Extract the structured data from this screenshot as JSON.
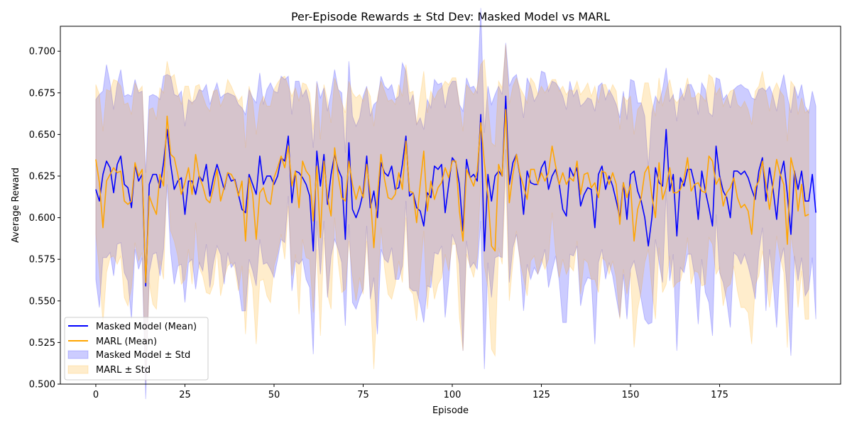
{
  "chart_data": {
    "type": "line",
    "title": "Per-Episode Rewards ± Std Dev: Masked Model vs MARL",
    "xlabel": "Episode",
    "ylabel": "Average Reward",
    "xlim": [
      -9.95,
      208.95
    ],
    "ylim": [
      0.5,
      0.715
    ],
    "xticks": [
      0,
      25,
      50,
      75,
      100,
      125,
      150,
      175
    ],
    "yticks": [
      0.5,
      0.525,
      0.55,
      0.575,
      0.6,
      0.625,
      0.65,
      0.675,
      0.7
    ],
    "ytick_labels": [
      "0.500",
      "0.525",
      "0.550",
      "0.575",
      "0.600",
      "0.625",
      "0.650",
      "0.675",
      "0.700"
    ],
    "legend_position": "lower-left",
    "grid": false,
    "series": [
      {
        "name": "Masked Model (Mean)",
        "std_name": "Masked Model ± Std",
        "color": "#0000ff",
        "band_color": "#0000ff",
        "band_opacity": 0.2,
        "x_start": 0,
        "mean": [
          0.617,
          0.61,
          0.626,
          0.634,
          0.63,
          0.615,
          0.632,
          0.637,
          0.62,
          0.618,
          0.606,
          0.632,
          0.622,
          0.626,
          0.559,
          0.62,
          0.626,
          0.626,
          0.618,
          0.633,
          0.653,
          0.632,
          0.617,
          0.622,
          0.624,
          0.602,
          0.622,
          0.622,
          0.614,
          0.625,
          0.622,
          0.632,
          0.613,
          0.624,
          0.632,
          0.625,
          0.617,
          0.627,
          0.622,
          0.623,
          0.614,
          0.605,
          0.603,
          0.626,
          0.62,
          0.614,
          0.637,
          0.62,
          0.625,
          0.625,
          0.62,
          0.625,
          0.636,
          0.634,
          0.649,
          0.609,
          0.628,
          0.627,
          0.624,
          0.62,
          0.613,
          0.58,
          0.64,
          0.619,
          0.638,
          0.608,
          0.626,
          0.638,
          0.629,
          0.624,
          0.587,
          0.645,
          0.605,
          0.6,
          0.606,
          0.615,
          0.637,
          0.606,
          0.616,
          0.6,
          0.633,
          0.627,
          0.625,
          0.631,
          0.617,
          0.618,
          0.632,
          0.649,
          0.613,
          0.615,
          0.606,
          0.604,
          0.595,
          0.615,
          0.612,
          0.631,
          0.629,
          0.632,
          0.603,
          0.62,
          0.636,
          0.633,
          0.62,
          0.592,
          0.635,
          0.624,
          0.626,
          0.622,
          0.662,
          0.58,
          0.626,
          0.61,
          0.625,
          0.628,
          0.625,
          0.673,
          0.62,
          0.633,
          0.638,
          0.625,
          0.602,
          0.628,
          0.621,
          0.62,
          0.62,
          0.63,
          0.634,
          0.617,
          0.625,
          0.629,
          0.62,
          0.605,
          0.601,
          0.63,
          0.625,
          0.63,
          0.607,
          0.614,
          0.618,
          0.617,
          0.594,
          0.626,
          0.631,
          0.617,
          0.625,
          0.619,
          0.61,
          0.6,
          0.621,
          0.599,
          0.626,
          0.628,
          0.616,
          0.61,
          0.6,
          0.583,
          0.6,
          0.63,
          0.621,
          0.619,
          0.653,
          0.616,
          0.626,
          0.589,
          0.624,
          0.619,
          0.629,
          0.629,
          0.62,
          0.599,
          0.628,
          0.616,
          0.606,
          0.595,
          0.643,
          0.625,
          0.616,
          0.612,
          0.6,
          0.628,
          0.628,
          0.626,
          0.628,
          0.624,
          0.617,
          0.611,
          0.628,
          0.636,
          0.61,
          0.63,
          0.617,
          0.599,
          0.625,
          0.634,
          0.614,
          0.59,
          0.628,
          0.617,
          0.628,
          0.61,
          0.61,
          0.626,
          0.603
        ],
        "std": [
          0.054,
          0.064,
          0.05,
          0.058,
          0.051,
          0.05,
          0.048,
          0.052,
          0.053,
          0.056,
          0.067,
          0.051,
          0.053,
          0.05,
          0.068,
          0.053,
          0.048,
          0.047,
          0.053,
          0.052,
          0.033,
          0.053,
          0.057,
          0.051,
          0.052,
          0.053,
          0.049,
          0.047,
          0.057,
          0.052,
          0.054,
          0.048,
          0.055,
          0.051,
          0.049,
          0.047,
          0.057,
          0.048,
          0.052,
          0.05,
          0.054,
          0.061,
          0.059,
          0.051,
          0.052,
          0.055,
          0.05,
          0.048,
          0.052,
          0.056,
          0.056,
          0.05,
          0.049,
          0.049,
          0.036,
          0.053,
          0.054,
          0.055,
          0.049,
          0.057,
          0.055,
          0.062,
          0.042,
          0.053,
          0.04,
          0.056,
          0.049,
          0.051,
          0.048,
          0.051,
          0.052,
          0.049,
          0.056,
          0.055,
          0.054,
          0.058,
          0.042,
          0.055,
          0.052,
          0.07,
          0.052,
          0.052,
          0.052,
          0.049,
          0.054,
          0.055,
          0.061,
          0.039,
          0.055,
          0.059,
          0.05,
          0.056,
          0.058,
          0.056,
          0.054,
          0.052,
          0.051,
          0.049,
          0.063,
          0.058,
          0.046,
          0.049,
          0.048,
          0.072,
          0.049,
          0.054,
          0.053,
          0.053,
          0.064,
          0.071,
          0.053,
          0.058,
          0.049,
          0.051,
          0.049,
          0.032,
          0.059,
          0.051,
          0.048,
          0.05,
          0.058,
          0.056,
          0.058,
          0.05,
          0.054,
          0.058,
          0.053,
          0.059,
          0.057,
          0.052,
          0.058,
          0.068,
          0.064,
          0.052,
          0.048,
          0.047,
          0.06,
          0.055,
          0.054,
          0.054,
          0.07,
          0.053,
          0.05,
          0.054,
          0.052,
          0.054,
          0.058,
          0.06,
          0.055,
          0.06,
          0.057,
          0.054,
          0.053,
          0.059,
          0.061,
          0.047,
          0.063,
          0.043,
          0.048,
          0.058,
          0.037,
          0.054,
          0.048,
          0.069,
          0.054,
          0.052,
          0.051,
          0.051,
          0.055,
          0.063,
          0.053,
          0.061,
          0.057,
          0.066,
          0.041,
          0.058,
          0.055,
          0.062,
          0.066,
          0.049,
          0.051,
          0.054,
          0.05,
          0.053,
          0.055,
          0.06,
          0.049,
          0.042,
          0.066,
          0.049,
          0.056,
          0.065,
          0.052,
          0.052,
          0.059,
          0.073,
          0.051,
          0.055,
          0.052,
          0.057,
          0.053,
          0.05,
          0.064
        ]
      },
      {
        "name": "MARL (Mean)",
        "std_name": "MARL ± Std",
        "color": "#ffa500",
        "band_color": "#ffa500",
        "band_opacity": 0.2,
        "x_start": 0,
        "mean": [
          0.635,
          0.621,
          0.594,
          0.622,
          0.626,
          0.63,
          0.627,
          0.628,
          0.61,
          0.608,
          0.61,
          0.633,
          0.625,
          0.629,
          0.561,
          0.613,
          0.607,
          0.602,
          0.626,
          0.619,
          0.661,
          0.638,
          0.636,
          0.626,
          0.614,
          0.621,
          0.63,
          0.614,
          0.638,
          0.625,
          0.619,
          0.611,
          0.609,
          0.618,
          0.629,
          0.61,
          0.618,
          0.627,
          0.626,
          0.622,
          0.613,
          0.622,
          0.586,
          0.624,
          0.614,
          0.587,
          0.615,
          0.618,
          0.61,
          0.608,
          0.624,
          0.63,
          0.637,
          0.63,
          0.643,
          0.619,
          0.628,
          0.606,
          0.634,
          0.628,
          0.625,
          0.598,
          0.631,
          0.588,
          0.634,
          0.612,
          0.601,
          0.642,
          0.625,
          0.612,
          0.61,
          0.634,
          0.62,
          0.611,
          0.619,
          0.612,
          0.632,
          0.614,
          0.582,
          0.613,
          0.638,
          0.623,
          0.612,
          0.611,
          0.614,
          0.627,
          0.617,
          0.646,
          0.616,
          0.615,
          0.597,
          0.62,
          0.64,
          0.604,
          0.622,
          0.611,
          0.618,
          0.621,
          0.63,
          0.624,
          0.634,
          0.634,
          0.604,
          0.586,
          0.629,
          0.624,
          0.619,
          0.628,
          0.657,
          0.633,
          0.613,
          0.583,
          0.58,
          0.632,
          0.625,
          0.665,
          0.609,
          0.626,
          0.638,
          0.626,
          0.619,
          0.611,
          0.629,
          0.629,
          0.62,
          0.627,
          0.622,
          0.627,
          0.643,
          0.631,
          0.62,
          0.627,
          0.62,
          0.624,
          0.622,
          0.634,
          0.614,
          0.626,
          0.627,
          0.618,
          0.621,
          0.612,
          0.628,
          0.627,
          0.62,
          0.627,
          0.62,
          0.596,
          0.621,
          0.612,
          0.62,
          0.586,
          0.605,
          0.612,
          0.627,
          0.631,
          0.613,
          0.6,
          0.633,
          0.611,
          0.618,
          0.63,
          0.615,
          0.615,
          0.617,
          0.623,
          0.636,
          0.616,
          0.62,
          0.621,
          0.616,
          0.615,
          0.637,
          0.634,
          0.62,
          0.624,
          0.607,
          0.615,
          0.618,
          0.624,
          0.612,
          0.606,
          0.608,
          0.604,
          0.59,
          0.618,
          0.622,
          0.634,
          0.62,
          0.605,
          0.62,
          0.635,
          0.626,
          0.62,
          0.584,
          0.636,
          0.627,
          0.604,
          0.62,
          0.601,
          0.602
        ],
        "std": [
          0.045,
          0.053,
          0.058,
          0.055,
          0.05,
          0.053,
          0.055,
          0.051,
          0.058,
          0.061,
          0.052,
          0.048,
          0.051,
          0.05,
          0.06,
          0.052,
          0.059,
          0.057,
          0.052,
          0.056,
          0.033,
          0.046,
          0.05,
          0.049,
          0.054,
          0.058,
          0.049,
          0.054,
          0.041,
          0.055,
          0.054,
          0.056,
          0.055,
          0.058,
          0.048,
          0.057,
          0.054,
          0.056,
          0.053,
          0.052,
          0.057,
          0.051,
          0.056,
          0.055,
          0.056,
          0.063,
          0.053,
          0.055,
          0.057,
          0.059,
          0.053,
          0.051,
          0.047,
          0.055,
          0.036,
          0.054,
          0.05,
          0.064,
          0.047,
          0.052,
          0.05,
          0.055,
          0.05,
          0.059,
          0.046,
          0.058,
          0.056,
          0.042,
          0.052,
          0.057,
          0.053,
          0.048,
          0.055,
          0.061,
          0.055,
          0.058,
          0.046,
          0.059,
          0.073,
          0.059,
          0.044,
          0.053,
          0.058,
          0.06,
          0.054,
          0.053,
          0.056,
          0.046,
          0.059,
          0.061,
          0.059,
          0.053,
          0.048,
          0.059,
          0.054,
          0.06,
          0.058,
          0.057,
          0.052,
          0.056,
          0.05,
          0.05,
          0.064,
          0.066,
          0.051,
          0.053,
          0.055,
          0.051,
          0.035,
          0.062,
          0.055,
          0.062,
          0.063,
          0.05,
          0.053,
          0.039,
          0.059,
          0.053,
          0.046,
          0.052,
          0.055,
          0.058,
          0.055,
          0.052,
          0.054,
          0.052,
          0.053,
          0.052,
          0.04,
          0.052,
          0.056,
          0.052,
          0.054,
          0.053,
          0.054,
          0.048,
          0.06,
          0.051,
          0.054,
          0.055,
          0.058,
          0.057,
          0.052,
          0.053,
          0.054,
          0.053,
          0.056,
          0.057,
          0.052,
          0.058,
          0.053,
          0.064,
          0.06,
          0.056,
          0.054,
          0.05,
          0.056,
          0.061,
          0.051,
          0.056,
          0.058,
          0.053,
          0.057,
          0.054,
          0.055,
          0.052,
          0.048,
          0.056,
          0.052,
          0.054,
          0.057,
          0.055,
          0.049,
          0.05,
          0.054,
          0.054,
          0.06,
          0.057,
          0.058,
          0.053,
          0.056,
          0.06,
          0.062,
          0.061,
          0.066,
          0.058,
          0.057,
          0.054,
          0.055,
          0.059,
          0.056,
          0.046,
          0.05,
          0.053,
          0.062,
          0.046,
          0.052,
          0.058,
          0.052,
          0.062,
          0.063
        ]
      }
    ]
  }
}
